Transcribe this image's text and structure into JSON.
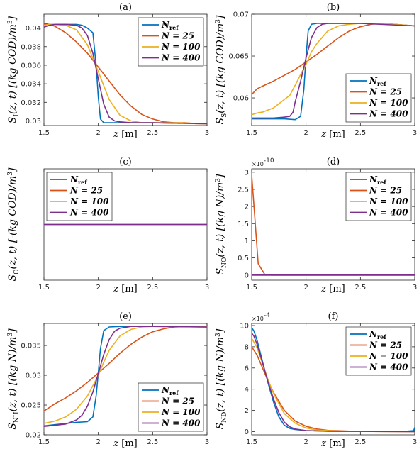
{
  "colors": {
    "ref": "#0072BD",
    "n25": "#D95319",
    "n100": "#EDB120",
    "n400": "#7E2F8E"
  },
  "chart_data": [
    {
      "type": "line",
      "panel": "(a)",
      "ylabel": "S_I(z, t) [(kg COD)/m^3]",
      "xlabel": "z [m]",
      "xlim": [
        1.5,
        3
      ],
      "ylim": [
        0.0295,
        0.0415
      ],
      "xticks": [
        "1.5",
        "2",
        "2.5",
        "3"
      ],
      "yticks": [
        "0.03",
        "0.032",
        "0.034",
        "0.036",
        "0.038",
        "0.04"
      ],
      "legend_position": "top-right",
      "series": [
        {
          "name": "N_ref",
          "x": [
            1.5,
            1.55,
            1.6,
            1.7,
            1.8,
            1.85,
            1.9,
            1.95,
            1.98,
            2.0,
            2.02,
            2.05,
            2.1,
            2.2,
            2.5,
            3.0
          ],
          "y": [
            0.0405,
            0.0404,
            0.0404,
            0.0404,
            0.0404,
            0.0403,
            0.04,
            0.0395,
            0.036,
            0.0325,
            0.0302,
            0.0298,
            0.0298,
            0.0298,
            0.0298,
            0.0297
          ]
        },
        {
          "name": "N = 25",
          "x": [
            1.5,
            1.55,
            1.6,
            1.7,
            1.8,
            1.9,
            2.0,
            2.1,
            2.2,
            2.3,
            2.4,
            2.5,
            2.6,
            2.7,
            2.8,
            2.9,
            3.0
          ],
          "y": [
            0.0404,
            0.0404,
            0.0402,
            0.0395,
            0.0385,
            0.0373,
            0.0358,
            0.0343,
            0.0328,
            0.0316,
            0.0307,
            0.0302,
            0.0299,
            0.0298,
            0.0298,
            0.0297,
            0.0297
          ]
        },
        {
          "name": "N = 100",
          "x": [
            1.5,
            1.55,
            1.6,
            1.7,
            1.8,
            1.9,
            2.0,
            2.05,
            2.1,
            2.2,
            2.3,
            2.4,
            2.5,
            2.7,
            3.0
          ],
          "y": [
            0.0403,
            0.0404,
            0.0404,
            0.0403,
            0.0398,
            0.0382,
            0.0353,
            0.0338,
            0.0323,
            0.0306,
            0.03,
            0.0298,
            0.0298,
            0.0298,
            0.0297
          ]
        },
        {
          "name": "N = 400",
          "x": [
            1.5,
            1.55,
            1.6,
            1.7,
            1.8,
            1.85,
            1.9,
            1.95,
            2.0,
            2.05,
            2.1,
            2.15,
            2.2,
            2.3,
            2.5,
            3.0
          ],
          "y": [
            0.0401,
            0.0403,
            0.0404,
            0.0404,
            0.0403,
            0.04,
            0.0392,
            0.0373,
            0.0345,
            0.0318,
            0.0304,
            0.03,
            0.0299,
            0.0298,
            0.0298,
            0.0297
          ]
        }
      ]
    },
    {
      "type": "line",
      "panel": "(b)",
      "ylabel": "S_S(z, t) [(kg COD)/m^3]",
      "xlabel": "z [m]",
      "xlim": [
        1.5,
        3
      ],
      "ylim": [
        0.0567,
        0.07
      ],
      "xticks": [
        "1.5",
        "2",
        "2.5",
        "3"
      ],
      "yticks": [
        "0.06",
        "0.065",
        "0.07"
      ],
      "legend_position": "bottom-right",
      "series": [
        {
          "name": "N_ref",
          "x": [
            1.5,
            1.6,
            1.7,
            1.8,
            1.9,
            1.95,
            1.98,
            2.0,
            2.02,
            2.05,
            2.1,
            2.2,
            2.5,
            2.8,
            3.0
          ],
          "y": [
            0.0575,
            0.0575,
            0.0575,
            0.0575,
            0.0574,
            0.0578,
            0.061,
            0.065,
            0.068,
            0.0688,
            0.0689,
            0.0689,
            0.0689,
            0.0688,
            0.0686
          ]
        },
        {
          "name": "N = 25",
          "x": [
            1.5,
            1.55,
            1.6,
            1.7,
            1.8,
            1.9,
            2.0,
            2.1,
            2.2,
            2.3,
            2.4,
            2.5,
            2.6,
            2.7,
            2.8,
            2.9,
            3.0
          ],
          "y": [
            0.0604,
            0.0611,
            0.0614,
            0.062,
            0.0627,
            0.0634,
            0.0643,
            0.0652,
            0.0662,
            0.0672,
            0.068,
            0.0685,
            0.0688,
            0.0689,
            0.0688,
            0.0687,
            0.0686
          ]
        },
        {
          "name": "N = 100",
          "x": [
            1.5,
            1.55,
            1.6,
            1.7,
            1.8,
            1.85,
            1.9,
            1.95,
            2.0,
            2.05,
            2.1,
            2.2,
            2.3,
            2.4,
            2.5,
            2.7,
            3.0
          ],
          "y": [
            0.058,
            0.0582,
            0.0583,
            0.0588,
            0.0598,
            0.0603,
            0.0615,
            0.0628,
            0.064,
            0.0655,
            0.0665,
            0.068,
            0.0686,
            0.0688,
            0.0689,
            0.0689,
            0.0686
          ]
        },
        {
          "name": "N = 400",
          "x": [
            1.5,
            1.6,
            1.7,
            1.8,
            1.85,
            1.88,
            1.9,
            1.95,
            2.0,
            2.05,
            2.1,
            2.15,
            2.2,
            2.3,
            2.5,
            3.0
          ],
          "y": [
            0.0576,
            0.0576,
            0.0576,
            0.0577,
            0.0578,
            0.0583,
            0.0595,
            0.062,
            0.0648,
            0.0672,
            0.0684,
            0.0688,
            0.0689,
            0.0689,
            0.0689,
            0.0686
          ]
        }
      ]
    },
    {
      "type": "line",
      "panel": "(c)",
      "ylabel": "S_O(z, t) [-(kg COD)/m^3]",
      "xlabel": "z [m]",
      "xlim": [
        1.5,
        3
      ],
      "ylim": [
        -1,
        1
      ],
      "xticks": [
        "1.5",
        "2",
        "2.5",
        "3"
      ],
      "yticks": [],
      "legend_position": "top-left",
      "series": [
        {
          "name": "N_ref",
          "x": [
            1.5,
            3.0
          ],
          "y": [
            0,
            0
          ]
        },
        {
          "name": "N = 25",
          "x": [
            1.5,
            3.0
          ],
          "y": [
            0,
            0
          ]
        },
        {
          "name": "N = 100",
          "x": [
            1.5,
            3.0
          ],
          "y": [
            0,
            0
          ]
        },
        {
          "name": "N = 400",
          "x": [
            1.5,
            3.0
          ],
          "y": [
            0,
            0
          ]
        }
      ]
    },
    {
      "type": "line",
      "panel": "(d)",
      "ylabel": "S_NO(z, t) [(kg N)/m^3]",
      "xlabel": "z [m]",
      "xlim": [
        1.5,
        3
      ],
      "ylim": [
        -0.15,
        3.1
      ],
      "y_exponent": "×10^-10",
      "xticks": [
        "1.5",
        "2",
        "2.5",
        "3"
      ],
      "yticks": [
        "0",
        "0.5",
        "1",
        "1.5",
        "2",
        "2.5",
        "3"
      ],
      "legend_position": "top-right",
      "series": [
        {
          "name": "N_ref",
          "x": [
            1.5,
            3.0
          ],
          "y": [
            0,
            0
          ]
        },
        {
          "name": "N = 25",
          "x": [
            1.5,
            1.56,
            1.62,
            1.68,
            3.0
          ],
          "y": [
            2.92,
            0.33,
            0.02,
            0,
            0
          ]
        },
        {
          "name": "N = 100",
          "x": [
            1.5,
            3.0
          ],
          "y": [
            0,
            0
          ]
        },
        {
          "name": "N = 400",
          "x": [
            1.5,
            3.0
          ],
          "y": [
            0,
            0
          ]
        }
      ]
    },
    {
      "type": "line",
      "panel": "(e)",
      "ylabel": "S_NH(z, t) [(kg N)/m^3]",
      "xlabel": "z [m]",
      "xlim": [
        1.5,
        3
      ],
      "ylim": [
        0.02,
        0.0387
      ],
      "xticks": [
        "1.5",
        "2",
        "2.5",
        "3"
      ],
      "yticks": [
        "0.02",
        "0.025",
        "0.03",
        "0.035"
      ],
      "legend_position": "bottom-right",
      "series": [
        {
          "name": "N_ref",
          "x": [
            1.5,
            1.6,
            1.7,
            1.8,
            1.9,
            1.95,
            1.98,
            2.0,
            2.02,
            2.05,
            2.1,
            2.2,
            2.5,
            3.0
          ],
          "y": [
            0.0215,
            0.0217,
            0.0219,
            0.0221,
            0.0222,
            0.023,
            0.0265,
            0.0305,
            0.0345,
            0.0375,
            0.0381,
            0.0382,
            0.0382,
            0.0381
          ]
        },
        {
          "name": "N = 25",
          "x": [
            1.5,
            1.55,
            1.6,
            1.7,
            1.8,
            1.9,
            2.0,
            2.1,
            2.2,
            2.3,
            2.4,
            2.5,
            2.6,
            2.7,
            2.8,
            2.9,
            3.0
          ],
          "y": [
            0.024,
            0.0246,
            0.0252,
            0.0262,
            0.0274,
            0.0288,
            0.0304,
            0.032,
            0.0337,
            0.0352,
            0.0364,
            0.0373,
            0.0378,
            0.0381,
            0.0382,
            0.0382,
            0.0381
          ]
        },
        {
          "name": "N = 100",
          "x": [
            1.5,
            1.6,
            1.7,
            1.8,
            1.9,
            2.0,
            2.05,
            2.1,
            2.2,
            2.3,
            2.4,
            2.5,
            2.7,
            3.0
          ],
          "y": [
            0.0219,
            0.0223,
            0.023,
            0.0243,
            0.0265,
            0.03,
            0.0322,
            0.0342,
            0.0366,
            0.0377,
            0.0381,
            0.0382,
            0.0382,
            0.0381
          ]
        },
        {
          "name": "N = 400",
          "x": [
            1.5,
            1.6,
            1.7,
            1.8,
            1.85,
            1.9,
            1.95,
            2.0,
            2.05,
            2.1,
            2.15,
            2.2,
            2.3,
            2.5,
            3.0
          ],
          "y": [
            0.0214,
            0.0216,
            0.0218,
            0.0225,
            0.0233,
            0.0248,
            0.0272,
            0.0303,
            0.0335,
            0.036,
            0.0374,
            0.0379,
            0.0382,
            0.0382,
            0.0381
          ]
        }
      ]
    },
    {
      "type": "line",
      "panel": "(f)",
      "ylabel": "S_ND(z, t) [(kg N)/m^3]",
      "xlabel": "z [m]",
      "xlim": [
        1.5,
        3
      ],
      "ylim": [
        -0.3,
        10.2
      ],
      "y_exponent": "×10^-4",
      "xticks": [
        "1.5",
        "2",
        "2.5",
        "3"
      ],
      "yticks": [
        "0",
        "2",
        "4",
        "6",
        "8",
        "10"
      ],
      "legend_position": "top-right",
      "series": [
        {
          "name": "N_ref",
          "x": [
            1.5,
            1.52,
            1.55,
            1.6,
            1.65,
            1.7,
            1.75,
            1.8,
            1.85,
            1.9,
            2.0,
            2.2,
            2.5,
            2.9,
            2.99,
            3.0
          ],
          "y": [
            9.8,
            9.5,
            8.6,
            6.6,
            4.6,
            2.8,
            1.4,
            0.6,
            0.3,
            0.2,
            0.1,
            0.05,
            0.03,
            0.02,
            0.1,
            0.4
          ]
        },
        {
          "name": "N = 25",
          "x": [
            1.5,
            1.55,
            1.6,
            1.65,
            1.7,
            1.8,
            1.9,
            2.0,
            2.1,
            2.2,
            2.4,
            2.6,
            3.0
          ],
          "y": [
            8.0,
            7.2,
            6.0,
            4.8,
            3.7,
            2.0,
            1.0,
            0.5,
            0.25,
            0.12,
            0.05,
            0.02,
            0.01
          ]
        },
        {
          "name": "N = 100",
          "x": [
            1.5,
            1.55,
            1.6,
            1.65,
            1.7,
            1.8,
            1.9,
            2.0,
            2.1,
            2.3,
            2.6,
            3.0
          ],
          "y": [
            8.8,
            7.9,
            6.4,
            4.9,
            3.6,
            1.7,
            0.8,
            0.35,
            0.15,
            0.05,
            0.02,
            0.01
          ]
        },
        {
          "name": "N = 400",
          "x": [
            1.5,
            1.52,
            1.55,
            1.6,
            1.65,
            1.7,
            1.75,
            1.8,
            1.85,
            1.9,
            2.0,
            2.2,
            2.6,
            3.0
          ],
          "y": [
            9.3,
            9.0,
            8.2,
            6.5,
            4.7,
            3.1,
            1.8,
            0.9,
            0.45,
            0.25,
            0.1,
            0.04,
            0.02,
            0.01
          ]
        }
      ]
    }
  ]
}
